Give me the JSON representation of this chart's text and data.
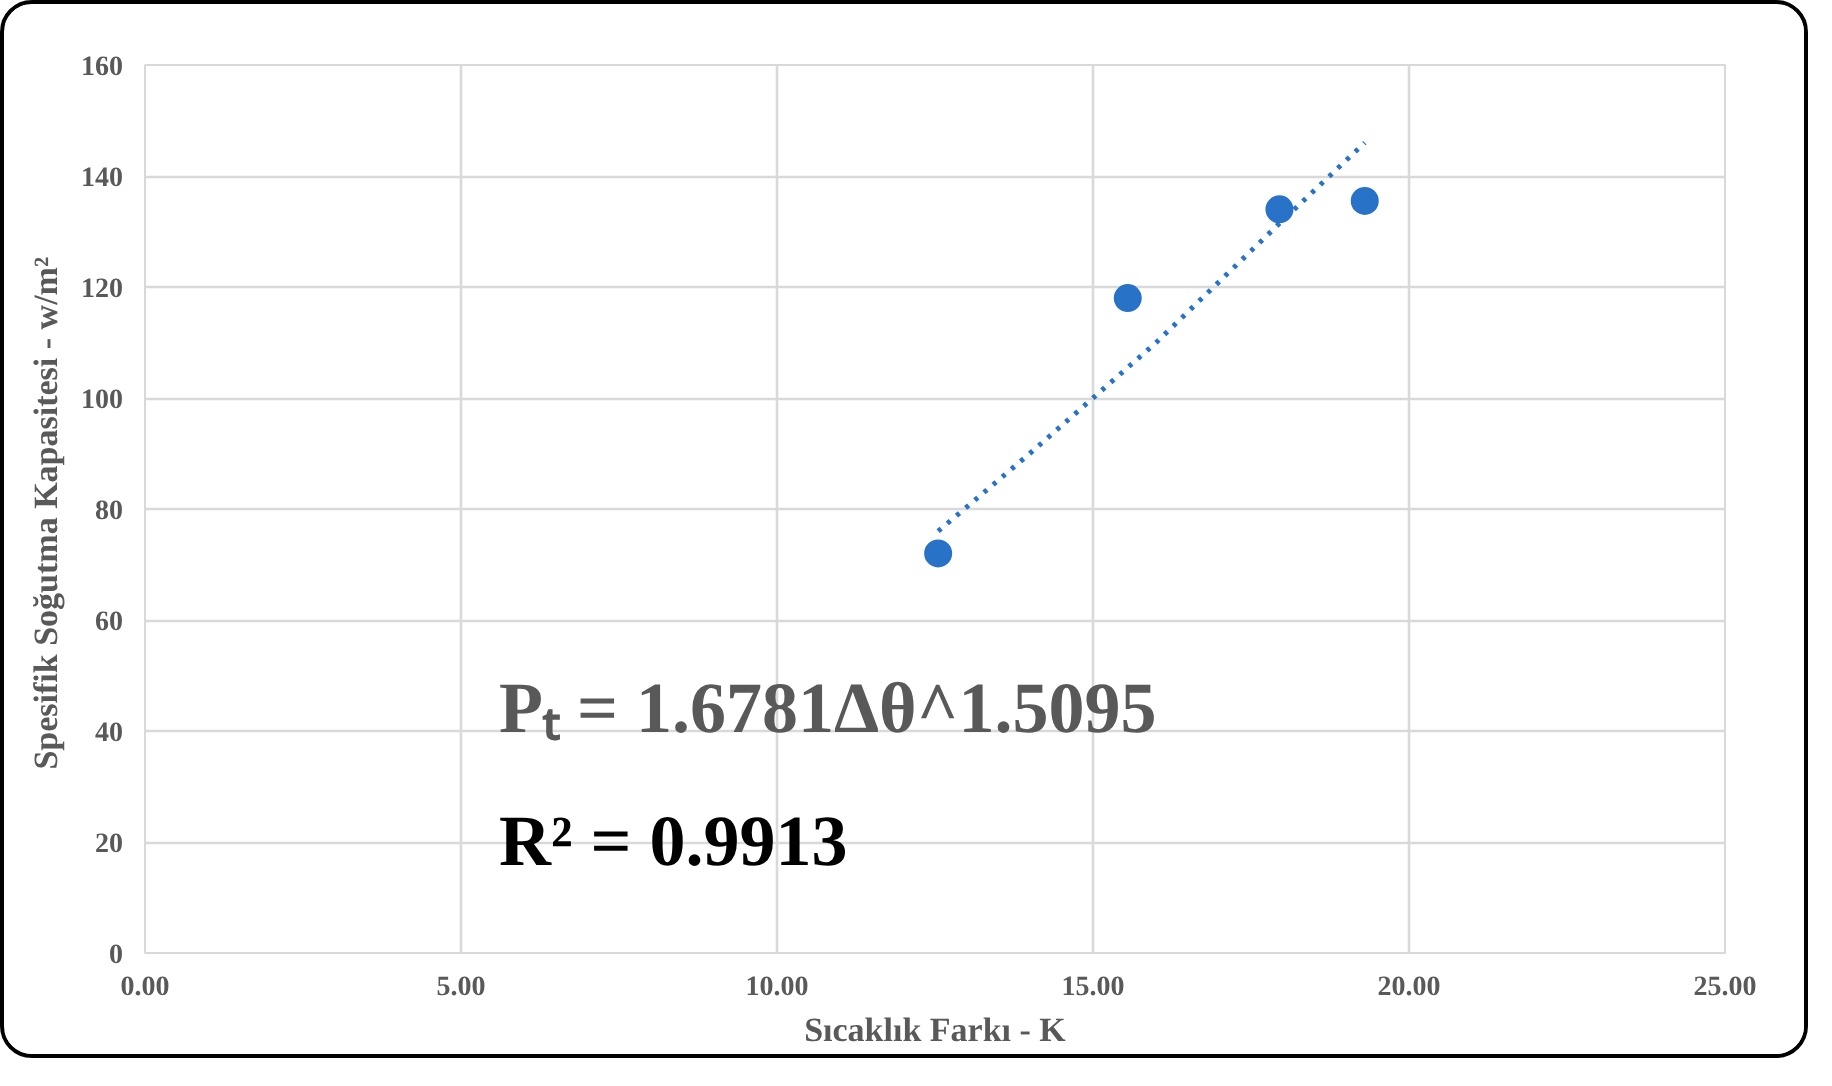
{
  "chart_data": {
    "type": "scatter",
    "xlabel": "Sıcaklık Farkı - K",
    "ylabel": "Spesifik Soğutma Kapasitesi  - w/m²",
    "xlim": [
      0,
      25
    ],
    "xticks": [
      {
        "value": 0,
        "label": "0.00"
      },
      {
        "value": 5,
        "label": "5.00"
      },
      {
        "value": 10,
        "label": "10.00"
      },
      {
        "value": 15,
        "label": "15.00"
      },
      {
        "value": 20,
        "label": "20.00"
      },
      {
        "value": 25,
        "label": "25.00"
      }
    ],
    "ylim": [
      0,
      160
    ],
    "yticks": [
      0,
      20,
      40,
      60,
      80,
      100,
      120,
      140,
      160
    ],
    "grid": true,
    "series": [
      {
        "marker": "circle",
        "color": "#2872c8",
        "x": [
          12.55,
          15.55,
          17.95,
          19.3
        ],
        "values": [
          72,
          118,
          134,
          135.5
        ]
      },
      {
        "type": "line",
        "line_style": "dotted",
        "color": "#2872c8",
        "x": [
          12.55,
          14,
          16,
          18,
          19.3
        ],
        "values": [
          76,
          90,
          110,
          132,
          146
        ]
      }
    ],
    "annotations": [
      "Pₜ =  1.6781Δθ^1.5095",
      "R² = 0.9913"
    ]
  }
}
